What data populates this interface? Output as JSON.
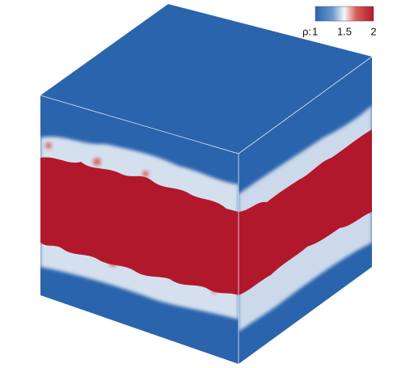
{
  "colorbar": {
    "label": "ρ:",
    "ticks": [
      1,
      1.5,
      2
    ]
  }
}
